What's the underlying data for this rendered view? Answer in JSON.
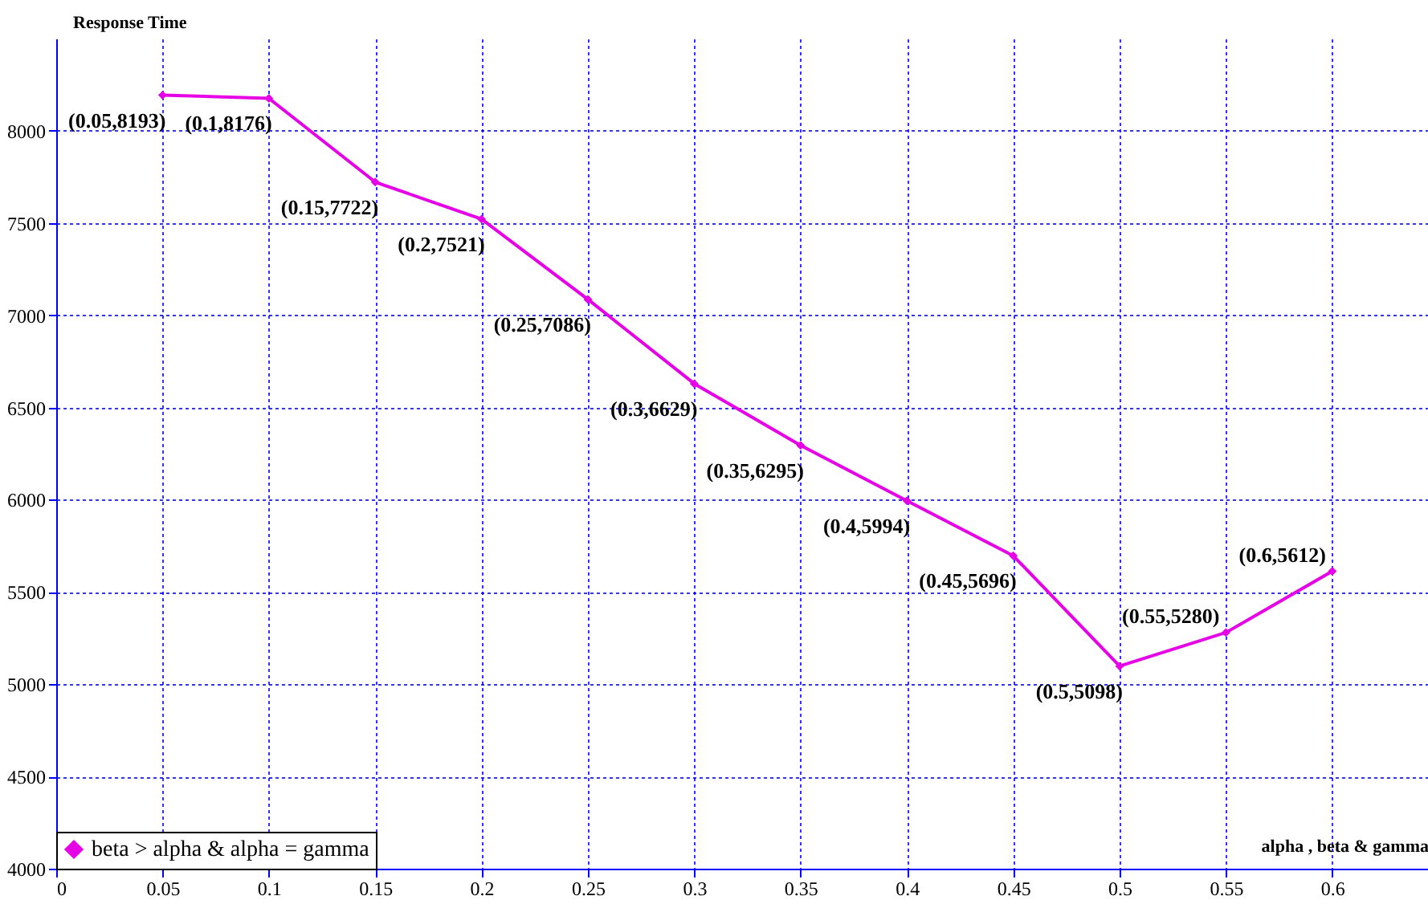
{
  "chart_data": {
    "type": "line",
    "xlabel": "alpha , beta & gamma",
    "ylabel": "Response Time",
    "x": [
      0.05,
      0.1,
      0.15,
      0.2,
      0.25,
      0.3,
      0.35,
      0.4,
      0.45,
      0.5,
      0.55,
      0.6
    ],
    "series": [
      {
        "name": "beta > alpha & alpha = gamma",
        "color": "#e600e6",
        "values": [
          8193,
          8176,
          7722,
          7521,
          7086,
          6629,
          6295,
          5994,
          5696,
          5098,
          5280,
          5612
        ],
        "value_labels": [
          "(0.05,8193)",
          "(0.1,8176)",
          "(0.15,7722)",
          "(0.2,7521)",
          "(0.25,7086)",
          "(0.3,6629)",
          "(0.35,6295)",
          "(0.4,5994)",
          "(0.45,5696)",
          "(0.5,5098)",
          "(0.55,5280)",
          "(0.6,5612)"
        ]
      }
    ],
    "xlim": [
      0,
      0.645
    ],
    "xticks": [
      0,
      0.05,
      0.1,
      0.15,
      0.2,
      0.25,
      0.3,
      0.35,
      0.4,
      0.45,
      0.5,
      0.55,
      0.6
    ],
    "ylim": [
      4000,
      8500
    ],
    "yticks": [
      4000,
      4500,
      5000,
      5500,
      6000,
      6500,
      7000,
      7500,
      8000
    ],
    "grid": true,
    "legend": "bottom left",
    "marker": "diamond",
    "line_style": "solid"
  }
}
